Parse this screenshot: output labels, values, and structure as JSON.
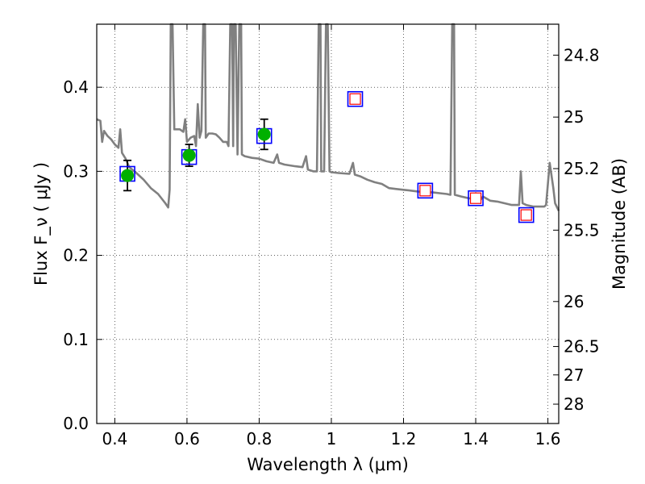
{
  "chart_data": {
    "type": "scatter",
    "title": "",
    "xlabel": "Wavelength  λ (μm)",
    "ylabel": "Flux  F_ν  ( μJy )",
    "ylabel_right": "Magnitude (AB)",
    "xlim": [
      0.35,
      1.63
    ],
    "ylim": [
      0.0,
      0.475
    ],
    "grid": true,
    "x_ticks": [
      {
        "value": 0.4,
        "label": "0.4"
      },
      {
        "value": 0.6,
        "label": "0.6"
      },
      {
        "value": 0.8,
        "label": "0.8"
      },
      {
        "value": 1.0,
        "label": "1"
      },
      {
        "value": 1.2,
        "label": "1.2"
      },
      {
        "value": 1.4,
        "label": "1.4"
      },
      {
        "value": 1.6,
        "label": "1.6"
      }
    ],
    "y_ticks": [
      {
        "value": 0.0,
        "label": "0.0"
      },
      {
        "value": 0.1,
        "label": "0.1"
      },
      {
        "value": 0.2,
        "label": "0.2"
      },
      {
        "value": 0.3,
        "label": "0.3"
      },
      {
        "value": 0.4,
        "label": "0.4"
      }
    ],
    "right_ticks": [
      {
        "label": "24.8",
        "flux": 0.4382
      },
      {
        "label": "25",
        "flux": 0.3645
      },
      {
        "label": "25.2",
        "flux": 0.3032
      },
      {
        "label": "25.5",
        "flux": 0.23
      },
      {
        "label": "26",
        "flux": 0.1451
      },
      {
        "label": "26.5",
        "flux": 0.0916
      },
      {
        "label": "27",
        "flux": 0.0578
      },
      {
        "label": "28",
        "flux": 0.023
      }
    ],
    "series": [
      {
        "kind": "model-spectrum",
        "color": "#808080",
        "points": [
          [
            0.35,
            0.362
          ],
          [
            0.36,
            0.36
          ],
          [
            0.365,
            0.335
          ],
          [
            0.37,
            0.348
          ],
          [
            0.38,
            0.342
          ],
          [
            0.39,
            0.338
          ],
          [
            0.4,
            0.332
          ],
          [
            0.41,
            0.328
          ],
          [
            0.415,
            0.35
          ],
          [
            0.42,
            0.322
          ],
          [
            0.43,
            0.315
          ],
          [
            0.44,
            0.305
          ],
          [
            0.46,
            0.298
          ],
          [
            0.48,
            0.29
          ],
          [
            0.5,
            0.28
          ],
          [
            0.52,
            0.273
          ],
          [
            0.54,
            0.262
          ],
          [
            0.548,
            0.257
          ],
          [
            0.552,
            0.278
          ],
          [
            0.555,
            0.475
          ],
          [
            0.56,
            0.475
          ],
          [
            0.565,
            0.35
          ],
          [
            0.58,
            0.35
          ],
          [
            0.59,
            0.347
          ],
          [
            0.595,
            0.362
          ],
          [
            0.6,
            0.335
          ],
          [
            0.61,
            0.34
          ],
          [
            0.62,
            0.342
          ],
          [
            0.625,
            0.33
          ],
          [
            0.63,
            0.38
          ],
          [
            0.635,
            0.34
          ],
          [
            0.64,
            0.348
          ],
          [
            0.645,
            0.475
          ],
          [
            0.65,
            0.475
          ],
          [
            0.652,
            0.34
          ],
          [
            0.66,
            0.345
          ],
          [
            0.67,
            0.345
          ],
          [
            0.68,
            0.344
          ],
          [
            0.69,
            0.34
          ],
          [
            0.7,
            0.335
          ],
          [
            0.71,
            0.335
          ],
          [
            0.715,
            0.33
          ],
          [
            0.72,
            0.475
          ],
          [
            0.725,
            0.475
          ],
          [
            0.728,
            0.33
          ],
          [
            0.73,
            0.475
          ],
          [
            0.735,
            0.475
          ],
          [
            0.74,
            0.32
          ],
          [
            0.745,
            0.475
          ],
          [
            0.75,
            0.475
          ],
          [
            0.752,
            0.32
          ],
          [
            0.76,
            0.318
          ],
          [
            0.78,
            0.316
          ],
          [
            0.8,
            0.315
          ],
          [
            0.82,
            0.312
          ],
          [
            0.84,
            0.31
          ],
          [
            0.85,
            0.32
          ],
          [
            0.855,
            0.31
          ],
          [
            0.87,
            0.308
          ],
          [
            0.9,
            0.306
          ],
          [
            0.92,
            0.305
          ],
          [
            0.93,
            0.318
          ],
          [
            0.935,
            0.302
          ],
          [
            0.95,
            0.3
          ],
          [
            0.96,
            0.3
          ],
          [
            0.965,
            0.475
          ],
          [
            0.97,
            0.475
          ],
          [
            0.972,
            0.3
          ],
          [
            0.98,
            0.3
          ],
          [
            0.985,
            0.475
          ],
          [
            0.99,
            0.475
          ],
          [
            0.995,
            0.3
          ],
          [
            1.0,
            0.299
          ],
          [
            1.02,
            0.298
          ],
          [
            1.05,
            0.297
          ],
          [
            1.06,
            0.31
          ],
          [
            1.065,
            0.296
          ],
          [
            1.08,
            0.294
          ],
          [
            1.1,
            0.29
          ],
          [
            1.12,
            0.287
          ],
          [
            1.14,
            0.285
          ],
          [
            1.16,
            0.28
          ],
          [
            1.18,
            0.279
          ],
          [
            1.2,
            0.278
          ],
          [
            1.22,
            0.277
          ],
          [
            1.24,
            0.276
          ],
          [
            1.26,
            0.275
          ],
          [
            1.28,
            0.275
          ],
          [
            1.3,
            0.274
          ],
          [
            1.32,
            0.273
          ],
          [
            1.33,
            0.272
          ],
          [
            1.335,
            0.475
          ],
          [
            1.34,
            0.475
          ],
          [
            1.342,
            0.272
          ],
          [
            1.36,
            0.27
          ],
          [
            1.38,
            0.268
          ],
          [
            1.4,
            0.267
          ],
          [
            1.41,
            0.264
          ],
          [
            1.42,
            0.27
          ],
          [
            1.44,
            0.265
          ],
          [
            1.46,
            0.264
          ],
          [
            1.48,
            0.262
          ],
          [
            1.5,
            0.26
          ],
          [
            1.52,
            0.26
          ],
          [
            1.525,
            0.3
          ],
          [
            1.53,
            0.262
          ],
          [
            1.54,
            0.26
          ],
          [
            1.56,
            0.258
          ],
          [
            1.58,
            0.258
          ],
          [
            1.59,
            0.258
          ],
          [
            1.595,
            0.26
          ],
          [
            1.605,
            0.31
          ],
          [
            1.615,
            0.28
          ],
          [
            1.62,
            0.262
          ],
          [
            1.63,
            0.253
          ]
        ]
      },
      {
        "kind": "observed-photometry",
        "marker": "circle",
        "color": "#00b000",
        "points": [
          {
            "x": 0.435,
            "y": 0.295,
            "err": 0.018
          },
          {
            "x": 0.606,
            "y": 0.319,
            "err": 0.013
          },
          {
            "x": 0.814,
            "y": 0.344,
            "err": 0.018
          }
        ]
      },
      {
        "kind": "model-photometry",
        "marker": "square",
        "color": "#0000ff",
        "points": [
          {
            "x": 0.435,
            "y": 0.297
          },
          {
            "x": 0.606,
            "y": 0.317
          },
          {
            "x": 0.814,
            "y": 0.342
          },
          {
            "x": 1.066,
            "y": 0.386
          },
          {
            "x": 1.26,
            "y": 0.277
          },
          {
            "x": 1.4,
            "y": 0.268
          },
          {
            "x": 1.54,
            "y": 0.248
          }
        ]
      },
      {
        "kind": "upper-bounds",
        "marker": "square",
        "color": "#ff0000",
        "points": [
          {
            "x": 1.066,
            "y": 0.386
          },
          {
            "x": 1.26,
            "y": 0.277
          },
          {
            "x": 1.4,
            "y": 0.268
          },
          {
            "x": 1.54,
            "y": 0.248
          }
        ]
      }
    ]
  }
}
